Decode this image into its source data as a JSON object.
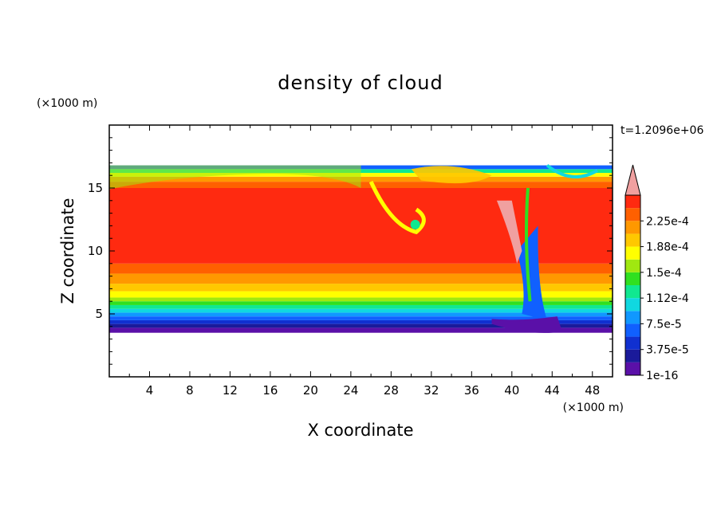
{
  "chart_data": {
    "type": "heatmap",
    "title": "density of cloud",
    "xlabel": "X coordinate",
    "ylabel": "Z coordinate",
    "x_unit": "(×1000 m)",
    "y_unit": "(×1000 m)",
    "time_label": "t=1.2096e+06",
    "xlim": [
      0,
      50
    ],
    "ylim": [
      0,
      20
    ],
    "x_ticks": [
      4,
      8,
      12,
      16,
      20,
      24,
      28,
      32,
      36,
      40,
      44,
      48
    ],
    "y_ticks": [
      5,
      10,
      15
    ],
    "colorbar": {
      "labels": [
        "1e-16",
        "3.75e-5",
        "7.5e-5",
        "1.12e-4",
        "1.5e-4",
        "1.88e-4",
        "2.25e-4"
      ],
      "levels": [
        1e-16,
        1.875e-05,
        3.75e-05,
        5.625e-05,
        7.5e-05,
        9.375e-05,
        0.0001125,
        0.00013125,
        0.00015,
        0.00016875,
        0.0001875,
        0.00020625,
        0.000225,
        0.00024375
      ],
      "colors": [
        "#5a10a8",
        "#1a1a9a",
        "#1030d0",
        "#1060ff",
        "#1098ff",
        "#10d8e0",
        "#10e890",
        "#30e020",
        "#a0e810",
        "#ffff00",
        "#ffc800",
        "#ff9800",
        "#ff6000",
        "#ff2a10",
        "#f0a0a0"
      ],
      "extend": "max"
    },
    "cloud_layer": {
      "base_z": 3.5,
      "top_z": 16.8,
      "core_value": 0.00023
    }
  }
}
